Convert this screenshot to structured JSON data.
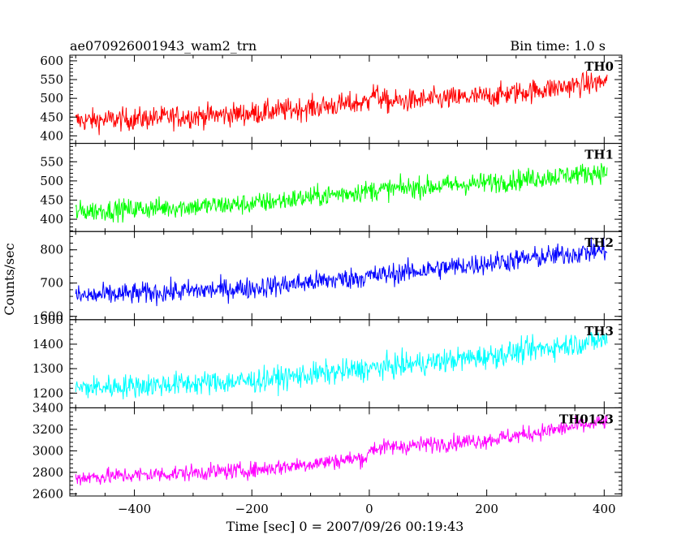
{
  "header": {
    "title_left": "ae070926001943_wam2_trn",
    "title_right": "Bin time: 1.0 s"
  },
  "chart_data": {
    "type": "line",
    "xlabel": "Time [sec] 0 = 2007/09/26 00:19:43",
    "ylabel": "Counts/sec",
    "xlim": [
      -510,
      430
    ],
    "xticks": [
      -400,
      -200,
      0,
      200,
      400
    ],
    "x_start": -500,
    "x_end": 405,
    "bin_time_s": 1.0,
    "panels": [
      {
        "name": "TH0",
        "color": "#ff0000",
        "ylim": [
          380,
          615
        ],
        "yticks": [
          400,
          450,
          500,
          550,
          600
        ],
        "trend": [
          [
            -500,
            440
          ],
          [
            -400,
            445
          ],
          [
            -200,
            460
          ],
          [
            -1,
            490
          ],
          [
            0,
            520
          ],
          [
            30,
            490
          ],
          [
            200,
            505
          ],
          [
            405,
            545
          ]
        ],
        "noise": 28
      },
      {
        "name": "TH1",
        "color": "#00ff00",
        "ylim": [
          368,
          598
        ],
        "yticks": [
          400,
          450,
          500,
          550
        ],
        "trend": [
          [
            -500,
            420
          ],
          [
            -200,
            440
          ],
          [
            0,
            475
          ],
          [
            200,
            495
          ],
          [
            405,
            525
          ]
        ],
        "noise": 25
      },
      {
        "name": "TH2",
        "color": "#0000ff",
        "ylim": [
          590,
          855
        ],
        "yticks": [
          600,
          700,
          800
        ],
        "trend": [
          [
            -500,
            660
          ],
          [
            -200,
            685
          ],
          [
            0,
            720
          ],
          [
            200,
            760
          ],
          [
            405,
            800
          ]
        ],
        "noise": 30
      },
      {
        "name": "TH3",
        "color": "#00ffff",
        "ylim": [
          1140,
          1500
        ],
        "yticks": [
          1200,
          1300,
          1400,
          1500
        ],
        "trend": [
          [
            -500,
            1220
          ],
          [
            -200,
            1250
          ],
          [
            0,
            1300
          ],
          [
            200,
            1350
          ],
          [
            405,
            1420
          ]
        ],
        "noise": 45
      },
      {
        "name": "TH0123",
        "color": "#ff00ff",
        "ylim": [
          2580,
          3400
        ],
        "yticks": [
          2600,
          2800,
          3000,
          3200,
          3400
        ],
        "trend": [
          [
            -500,
            2750
          ],
          [
            -200,
            2820
          ],
          [
            -1,
            2940
          ],
          [
            0,
            3020
          ],
          [
            200,
            3100
          ],
          [
            405,
            3270
          ]
        ],
        "noise": 70
      }
    ]
  }
}
